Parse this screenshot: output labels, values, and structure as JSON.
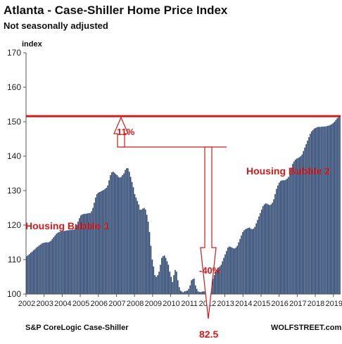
{
  "chart_data": {
    "type": "bar",
    "title": "Atlanta - Case-Shiller Home Price Index",
    "subtitle": "Not seasonally adjusted",
    "ylabel": "index",
    "xlabel": "",
    "ylim": [
      100,
      170
    ],
    "yticks": [
      100,
      110,
      120,
      130,
      140,
      150,
      160,
      170
    ],
    "xlim": [
      2002,
      2019.4
    ],
    "xtick_labels": [
      "2002",
      "2003",
      "2004",
      "2005",
      "2006",
      "2007",
      "2008",
      "2009",
      "2010",
      "2011",
      "2012",
      "2013",
      "2014",
      "2015",
      "2016",
      "2017",
      "2018",
      "2019"
    ],
    "grid": false,
    "legend": "none",
    "bar_color": "#243f6b",
    "reference_line": {
      "value": 151.6,
      "color": "#d11a1a"
    },
    "series": [
      {
        "values": [
          111.0,
          111.3,
          111.6,
          112.0,
          112.3,
          112.7,
          113.0,
          113.4,
          113.7,
          114.0,
          114.3,
          114.6,
          114.8,
          114.9,
          115.0,
          115.0,
          115.0,
          115.2,
          115.5,
          116.0,
          116.5,
          117.0,
          117.5,
          117.8,
          118.0,
          118.1,
          118.2,
          118.3,
          118.3,
          118.4,
          118.5,
          118.5,
          118.6,
          118.6,
          118.7,
          118.7,
          119.2,
          120.0,
          121.0,
          122.0,
          122.8,
          123.1,
          123.2,
          123.3,
          123.3,
          123.4,
          123.5,
          123.5,
          124.0,
          125.0,
          126.5,
          128.0,
          129.0,
          129.4,
          129.6,
          129.8,
          130.0,
          130.2,
          130.5,
          130.8,
          131.5,
          133.0,
          134.5,
          135.3,
          135.5,
          135.2,
          134.8,
          134.5,
          134.0,
          133.8,
          134.0,
          134.5,
          135.0,
          136.0,
          136.5,
          136.5,
          135.5,
          134.0,
          132.5,
          131.0,
          129.0,
          128.0,
          127.0,
          126.0,
          124.5,
          124.5,
          124.8,
          125.0,
          124.5,
          123.0,
          121.0,
          118.0,
          114.0,
          110.0,
          108.0,
          105.5,
          105.0,
          105.5,
          106.5,
          108.5,
          110.5,
          111.0,
          111.2,
          110.5,
          109.5,
          108.5,
          106.5,
          105.0,
          103.5,
          105.5,
          107.0,
          106.5,
          104.0,
          102.0,
          101.0,
          100.7,
          100.5,
          100.8,
          100.9,
          101.0,
          101.5,
          102.5,
          104.0,
          104.3,
          104.5,
          102.5,
          101.5,
          100.8,
          100.6,
          100.6,
          100.7,
          100.8,
          100.8,
          100.9,
          101.0,
          101.5,
          102.5,
          103.5,
          104.5,
          105.5,
          106.5,
          107.0,
          107.5,
          108.0,
          108.5,
          109.5,
          110.5,
          111.5,
          112.5,
          113.5,
          113.8,
          113.7,
          113.5,
          113.3,
          113.2,
          113.5,
          114.0,
          115.0,
          116.0,
          117.0,
          118.0,
          118.5,
          118.8,
          119.0,
          119.2,
          119.3,
          119.0,
          118.8,
          119.0,
          119.5,
          120.5,
          121.5,
          122.5,
          123.5,
          124.5,
          125.5,
          126.0,
          126.3,
          126.2,
          126.0,
          125.8,
          126.0,
          126.5,
          127.5,
          129.0,
          130.5,
          131.5,
          132.3,
          132.8,
          133.0,
          133.0,
          133.0,
          133.2,
          133.5,
          134.0,
          135.0,
          136.5,
          137.8,
          138.5,
          139.0,
          139.3,
          139.5,
          139.7,
          140.0,
          140.5,
          141.5,
          142.5,
          143.5,
          144.5,
          145.5,
          146.5,
          147.2,
          147.6,
          148.0,
          148.2,
          148.4,
          148.5,
          148.5,
          148.5,
          148.6,
          148.6,
          148.6,
          148.7,
          148.8,
          148.9,
          149.1,
          149.3,
          149.6,
          150.0,
          150.5,
          151.0,
          151.3,
          151.6
        ]
      }
    ],
    "annotations": [
      {
        "text": "Housing Bubble 1",
        "color": "#d11a1a"
      },
      {
        "text": "Housing Bubble 2",
        "color": "#d11a1a"
      },
      {
        "text": "11%",
        "color": "#d11a1a"
      },
      {
        "text": "-40%",
        "color": "#d11a1a"
      },
      {
        "text": "82.5",
        "color": "#d11a1a"
      }
    ],
    "source_left": "S&P CoreLogic Case-Shiller",
    "source_right": "WOLFSTREET.com"
  }
}
